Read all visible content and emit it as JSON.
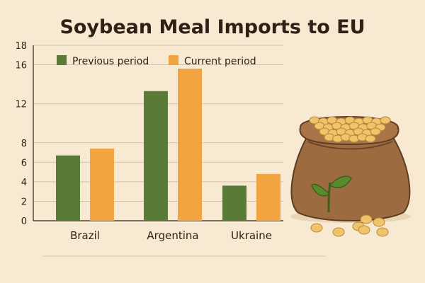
{
  "chart_data": {
    "type": "bar",
    "title": "Soybean Meal Imports to EU",
    "xlabel": "",
    "ylabel": "",
    "categories": [
      "Brazil",
      "Argentina",
      "Ukraine"
    ],
    "series": [
      {
        "name": "Previous period",
        "values": [
          6.7,
          13.3,
          3.6
        ],
        "color": "#5a7a38"
      },
      {
        "name": "Current period",
        "values": [
          7.4,
          15.6,
          4.8
        ],
        "color": "#f2a441"
      }
    ],
    "ylim": [
      0,
      18
    ],
    "yticks": [
      "0",
      "2",
      "4",
      "6",
      "8",
      "12",
      "16",
      "18"
    ],
    "ytick_values": [
      0,
      2,
      4,
      6,
      8,
      12,
      16,
      18
    ],
    "grid": true,
    "legend_position": "top-left"
  },
  "illustration": {
    "subject": "burlap sack of soybeans with seedling",
    "sack_color": "#9c6b40",
    "bean_color": "#f0c46a",
    "leaf_color": "#5a8a2e"
  }
}
